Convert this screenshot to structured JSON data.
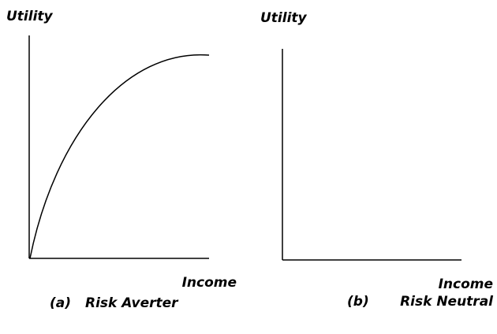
{
  "panels": [
    {
      "y_label": "Utility",
      "x_label": "Income",
      "caption": {
        "label": "(a)",
        "text": "Risk Averter"
      }
    },
    {
      "y_label": "Utility",
      "x_label": "Income",
      "caption": {
        "label": "(b)",
        "text": "Risk Neutral"
      }
    }
  ]
}
